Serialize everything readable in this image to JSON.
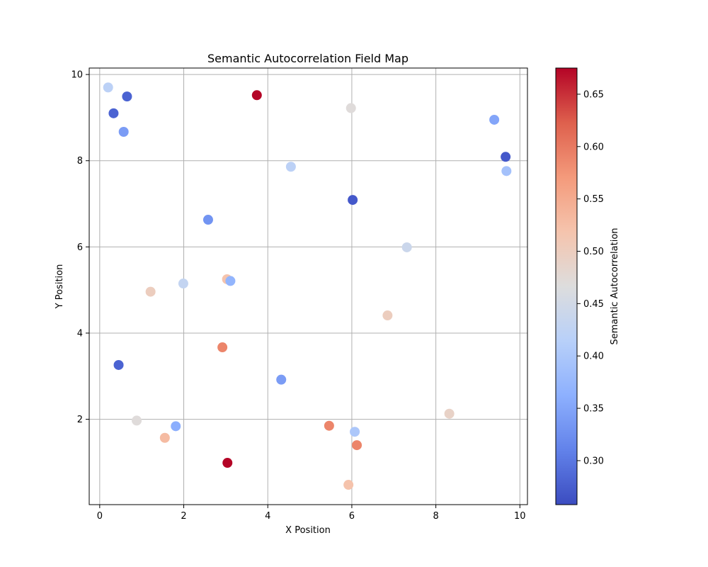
{
  "chart_data": {
    "type": "scatter",
    "title": "Semantic Autocorrelation Field Map",
    "xlabel": "X Position",
    "ylabel": "Y Position",
    "xlim": [
      -0.25,
      10.18
    ],
    "ylim": [
      0.02,
      10.15
    ],
    "x_ticks": [
      0,
      2,
      4,
      6,
      8,
      10
    ],
    "y_ticks": [
      2,
      4,
      6,
      8,
      10
    ],
    "grid": true,
    "colormap": "coolwarm",
    "colorbar": {
      "label": "Semantic Autocorrelation",
      "range": [
        0.258,
        0.675
      ],
      "ticks": [
        0.3,
        0.35,
        0.4,
        0.45,
        0.5,
        0.55,
        0.6,
        0.65
      ],
      "tick_labels": [
        "0.30",
        "0.35",
        "0.40",
        "0.45",
        "0.50",
        "0.55",
        "0.60",
        "0.65"
      ]
    },
    "points": [
      {
        "x": 0.2,
        "y": 9.7,
        "value": 0.42
      },
      {
        "x": 0.65,
        "y": 9.49,
        "value": 0.28
      },
      {
        "x": 0.33,
        "y": 9.1,
        "value": 0.28
      },
      {
        "x": 0.57,
        "y": 8.67,
        "value": 0.34
      },
      {
        "x": 3.74,
        "y": 9.52,
        "value": 0.675
      },
      {
        "x": 5.98,
        "y": 9.22,
        "value": 0.47
      },
      {
        "x": 9.39,
        "y": 8.95,
        "value": 0.35
      },
      {
        "x": 9.66,
        "y": 8.09,
        "value": 0.27
      },
      {
        "x": 9.68,
        "y": 7.76,
        "value": 0.39
      },
      {
        "x": 4.55,
        "y": 7.86,
        "value": 0.42
      },
      {
        "x": 6.02,
        "y": 7.09,
        "value": 0.27
      },
      {
        "x": 2.58,
        "y": 6.63,
        "value": 0.33
      },
      {
        "x": 7.31,
        "y": 5.99,
        "value": 0.44
      },
      {
        "x": 1.21,
        "y": 4.96,
        "value": 0.5
      },
      {
        "x": 1.99,
        "y": 5.15,
        "value": 0.43
      },
      {
        "x": 3.03,
        "y": 5.25,
        "value": 0.52
      },
      {
        "x": 3.11,
        "y": 5.21,
        "value": 0.37
      },
      {
        "x": 6.85,
        "y": 4.41,
        "value": 0.5
      },
      {
        "x": 0.45,
        "y": 3.26,
        "value": 0.28
      },
      {
        "x": 2.92,
        "y": 3.67,
        "value": 0.59
      },
      {
        "x": 4.32,
        "y": 2.92,
        "value": 0.34
      },
      {
        "x": 0.88,
        "y": 1.97,
        "value": 0.47
      },
      {
        "x": 1.81,
        "y": 1.84,
        "value": 0.36
      },
      {
        "x": 1.55,
        "y": 1.57,
        "value": 0.53
      },
      {
        "x": 3.04,
        "y": 0.99,
        "value": 0.675
      },
      {
        "x": 5.46,
        "y": 1.85,
        "value": 0.59
      },
      {
        "x": 6.07,
        "y": 1.71,
        "value": 0.4
      },
      {
        "x": 6.12,
        "y": 1.4,
        "value": 0.59
      },
      {
        "x": 8.32,
        "y": 2.13,
        "value": 0.49
      },
      {
        "x": 5.92,
        "y": 0.48,
        "value": 0.52
      }
    ]
  }
}
